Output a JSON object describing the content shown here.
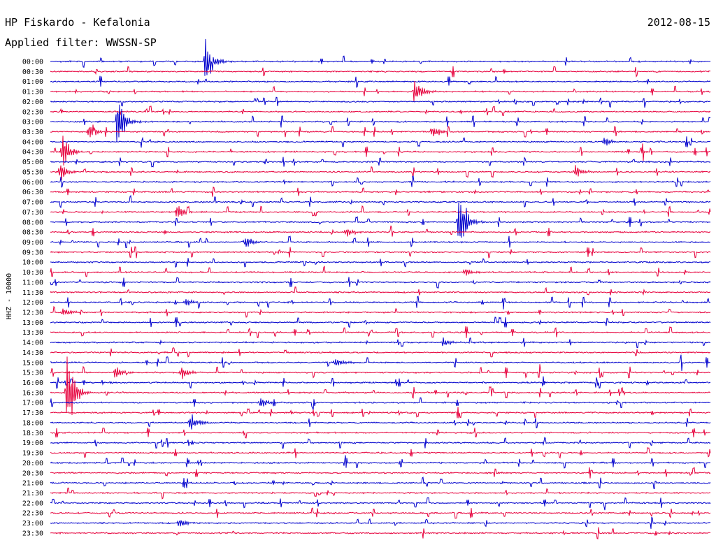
{
  "header": {
    "station": "HP Fiskardo - Kefalonia",
    "date": "2012-08-15",
    "filter": "Applied filter: WWSSN-SP"
  },
  "chart_data": {
    "type": "helicorder",
    "title": "HP Fiskardo - Kefalonia",
    "date": "2012-08-15",
    "filter": "WWSSN-SP",
    "ylabel": "HHZ - 10000",
    "row_labels": [
      "00:00",
      "00:30",
      "01:00",
      "01:30",
      "02:00",
      "02:30",
      "03:00",
      "03:30",
      "04:00",
      "04:30",
      "05:00",
      "05:30",
      "06:00",
      "06:30",
      "07:00",
      "07:30",
      "08:00",
      "08:30",
      "09:00",
      "09:30",
      "10:00",
      "10:30",
      "11:00",
      "11:30",
      "12:00",
      "12:30",
      "13:00",
      "13:30",
      "14:00",
      "14:30",
      "15:00",
      "15:30",
      "16:00",
      "16:30",
      "17:00",
      "17:30",
      "18:00",
      "18:30",
      "19:00",
      "19:30",
      "20:00",
      "20:30",
      "21:00",
      "21:30",
      "22:00",
      "22:30",
      "23:00",
      "23:30"
    ],
    "minutes_per_row": 30,
    "colors": [
      "#0000cc",
      "#e6003c"
    ],
    "events": [
      {
        "row": 0,
        "minute": 7.0,
        "amplitude": 1.5
      },
      {
        "row": 3,
        "minute": 16.5,
        "amplitude": 0.8
      },
      {
        "row": 6,
        "minute": 3.0,
        "amplitude": 1.6
      },
      {
        "row": 7,
        "minute": 1.7,
        "amplitude": 0.5
      },
      {
        "row": 7,
        "minute": 17.3,
        "amplitude": 0.5
      },
      {
        "row": 8,
        "minute": 25.1,
        "amplitude": 0.3
      },
      {
        "row": 9,
        "minute": 0.5,
        "amplitude": 1.0
      },
      {
        "row": 11,
        "minute": 0.4,
        "amplitude": 0.5
      },
      {
        "row": 11,
        "minute": 23.8,
        "amplitude": 0.4
      },
      {
        "row": 15,
        "minute": 5.7,
        "amplitude": 0.5
      },
      {
        "row": 16,
        "minute": 18.5,
        "amplitude": 2.0
      },
      {
        "row": 17,
        "minute": 13.4,
        "amplitude": 0.3
      },
      {
        "row": 18,
        "minute": 8.8,
        "amplitude": 0.4
      },
      {
        "row": 21,
        "minute": 18.8,
        "amplitude": 0.3
      },
      {
        "row": 24,
        "minute": 6.1,
        "amplitude": 0.3
      },
      {
        "row": 25,
        "minute": 0.5,
        "amplitude": 0.3
      },
      {
        "row": 28,
        "minute": 17.8,
        "amplitude": 0.3
      },
      {
        "row": 30,
        "minute": 12.9,
        "amplitude": 0.3
      },
      {
        "row": 31,
        "minute": 2.9,
        "amplitude": 0.4
      },
      {
        "row": 31,
        "minute": 5.9,
        "amplitude": 0.4
      },
      {
        "row": 33,
        "minute": 0.7,
        "amplitude": 2.6
      },
      {
        "row": 34,
        "minute": 9.5,
        "amplitude": 0.3
      },
      {
        "row": 36,
        "minute": 6.3,
        "amplitude": 0.6
      },
      {
        "row": 46,
        "minute": 5.8,
        "amplitude": 0.3
      }
    ]
  }
}
